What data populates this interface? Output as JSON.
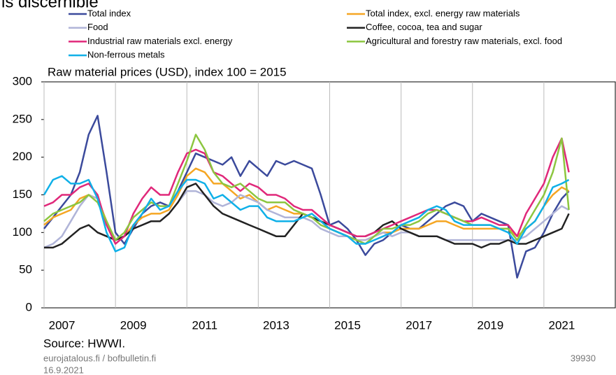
{
  "chart_data": {
    "type": "line",
    "heading": "is discernible",
    "title": "Raw material prices (USD), index 100 = 2015",
    "source": "Source: HWWI.",
    "footer_site": "eurojatalous.fi / bofbulletin.fi",
    "footer_date": "16.9.2021",
    "footer_id": "39930",
    "xlim": [
      2007,
      2023
    ],
    "xticks": [
      2007,
      2009,
      2011,
      2013,
      2015,
      2017,
      2019,
      2021
    ],
    "ylim": [
      0,
      300
    ],
    "yticks": [
      0,
      50,
      100,
      150,
      200,
      250,
      300
    ],
    "grid": true,
    "x": [
      2007,
      2007.25,
      2007.5,
      2007.75,
      2008,
      2008.25,
      2008.5,
      2008.75,
      2009,
      2009.25,
      2009.5,
      2009.75,
      2010,
      2010.25,
      2010.5,
      2010.75,
      2011,
      2011.25,
      2011.5,
      2011.75,
      2012,
      2012.25,
      2012.5,
      2012.75,
      2013,
      2013.25,
      2013.5,
      2013.75,
      2014,
      2014.25,
      2014.5,
      2014.75,
      2015,
      2015.25,
      2015.5,
      2015.75,
      2016,
      2016.25,
      2016.5,
      2016.75,
      2017,
      2017.25,
      2017.5,
      2017.75,
      2018,
      2018.25,
      2018.5,
      2018.75,
      2019,
      2019.25,
      2019.5,
      2019.75,
      2020,
      2020.25,
      2020.5,
      2020.75,
      2021,
      2021.25,
      2021.5,
      2021.7
    ],
    "series": [
      {
        "name": "Total index",
        "color": "#3b4a9c",
        "values": [
          105,
          120,
          135,
          150,
          180,
          230,
          255,
          180,
          100,
          85,
          105,
          125,
          135,
          140,
          135,
          155,
          180,
          205,
          200,
          195,
          190,
          200,
          175,
          195,
          185,
          175,
          195,
          190,
          195,
          190,
          185,
          150,
          110,
          115,
          105,
          90,
          70,
          85,
          90,
          100,
          110,
          105,
          105,
          115,
          125,
          135,
          140,
          135,
          115,
          125,
          120,
          115,
          110,
          40,
          75,
          80,
          100,
          125,
          145,
          155
        ]
      },
      {
        "name": "Total index, excl. energy raw materials",
        "color": "#f5a623",
        "values": [
          110,
          120,
          125,
          130,
          145,
          150,
          145,
          115,
          90,
          95,
          110,
          120,
          125,
          125,
          130,
          150,
          175,
          185,
          180,
          165,
          165,
          155,
          145,
          150,
          140,
          130,
          135,
          130,
          125,
          125,
          120,
          115,
          105,
          100,
          95,
          90,
          90,
          95,
          100,
          100,
          105,
          105,
          105,
          110,
          115,
          115,
          110,
          105,
          105,
          105,
          105,
          105,
          105,
          95,
          105,
          115,
          135,
          150,
          160,
          155
        ]
      },
      {
        "name": "Food",
        "color": "#b0b4d8",
        "values": [
          80,
          85,
          95,
          115,
          135,
          150,
          145,
          110,
          90,
          95,
          105,
          110,
          115,
          115,
          125,
          140,
          155,
          155,
          150,
          140,
          135,
          140,
          150,
          145,
          140,
          130,
          125,
          120,
          120,
          120,
          115,
          105,
          100,
          95,
          95,
          90,
          90,
          95,
          100,
          95,
          100,
          100,
          95,
          95,
          95,
          90,
          90,
          90,
          90,
          90,
          90,
          90,
          90,
          90,
          95,
          105,
          115,
          125,
          135,
          130
        ]
      },
      {
        "name": "Coffee, cocoa, tea and sugar",
        "color": "#222222",
        "values": [
          80,
          80,
          85,
          95,
          105,
          110,
          100,
          95,
          90,
          95,
          105,
          110,
          115,
          115,
          125,
          140,
          160,
          165,
          150,
          135,
          125,
          120,
          115,
          110,
          105,
          100,
          95,
          95,
          110,
          125,
          120,
          115,
          110,
          105,
          100,
          95,
          95,
          100,
          110,
          115,
          105,
          100,
          95,
          95,
          95,
          90,
          85,
          85,
          85,
          80,
          85,
          85,
          90,
          85,
          85,
          90,
          95,
          100,
          105,
          125
        ]
      },
      {
        "name": "Industrial raw materials excl. energy",
        "color": "#e0287a",
        "values": [
          135,
          140,
          150,
          150,
          160,
          165,
          150,
          110,
          85,
          95,
          125,
          145,
          160,
          150,
          150,
          180,
          205,
          210,
          205,
          180,
          175,
          165,
          155,
          165,
          160,
          150,
          150,
          145,
          135,
          130,
          130,
          120,
          110,
          105,
          100,
          95,
          95,
          100,
          105,
          110,
          115,
          120,
          125,
          130,
          130,
          125,
          120,
          115,
          115,
          120,
          115,
          110,
          110,
          95,
          125,
          145,
          165,
          200,
          225,
          180
        ]
      },
      {
        "name": "Agricultural and forestry raw materials, excl. food",
        "color": "#8cc63f",
        "values": [
          115,
          125,
          130,
          135,
          140,
          150,
          140,
          115,
          90,
          100,
          120,
          130,
          140,
          135,
          135,
          165,
          195,
          230,
          210,
          180,
          165,
          160,
          165,
          155,
          145,
          140,
          140,
          140,
          130,
          125,
          120,
          110,
          105,
          100,
          95,
          90,
          85,
          95,
          105,
          105,
          110,
          110,
          115,
          125,
          130,
          125,
          120,
          115,
          110,
          110,
          110,
          105,
          105,
          90,
          110,
          130,
          150,
          180,
          225,
          130
        ]
      },
      {
        "name": "Non-ferrous metals",
        "color": "#0fb0e8",
        "values": [
          150,
          170,
          175,
          165,
          165,
          170,
          145,
          100,
          75,
          80,
          110,
          125,
          145,
          130,
          135,
          155,
          170,
          170,
          165,
          145,
          150,
          140,
          130,
          135,
          135,
          120,
          115,
          115,
          115,
          120,
          125,
          115,
          105,
          100,
          95,
          85,
          85,
          90,
          95,
          100,
          110,
          115,
          120,
          130,
          135,
          130,
          115,
          110,
          110,
          110,
          110,
          105,
          100,
          85,
          105,
          115,
          135,
          160,
          165,
          170
        ]
      }
    ]
  }
}
